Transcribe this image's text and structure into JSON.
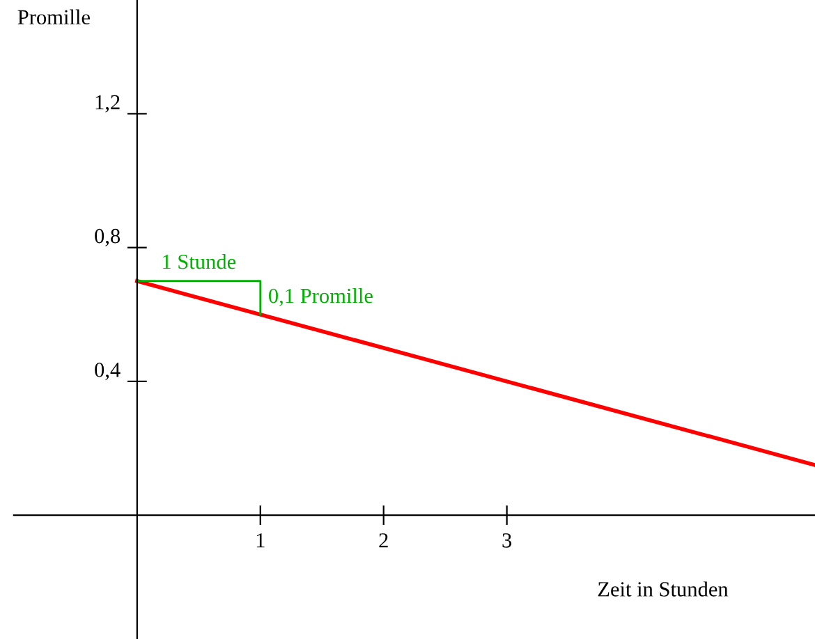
{
  "chart_data": {
    "type": "line",
    "xlabel": "Zeit in Stunden",
    "ylabel": "Promille",
    "xlim": [
      -1,
      5.5
    ],
    "ylim": [
      -0.37,
      1.54
    ],
    "xticks": [
      1,
      2,
      3
    ],
    "yticks": [
      {
        "value": 0.4,
        "label": "0,4"
      },
      {
        "value": 0.8,
        "label": "0,8"
      },
      {
        "value": 1.2,
        "label": "1,2"
      }
    ],
    "series": [
      {
        "color": "#ff0000",
        "x": [
          0,
          5.5
        ],
        "values": [
          0.7,
          0.15
        ]
      },
      {
        "color": "#00b000",
        "x": [
          0,
          1,
          1
        ],
        "values": [
          0.7,
          0.7,
          0.6
        ]
      }
    ],
    "annotations": [
      {
        "text": "1 Stunde",
        "x": 0.5,
        "y": 0.7
      },
      {
        "text": "0,1 Promille",
        "x": 1,
        "y": 0.65
      }
    ],
    "grid": false,
    "legend": false,
    "marker": "none",
    "line_style": "solid"
  }
}
